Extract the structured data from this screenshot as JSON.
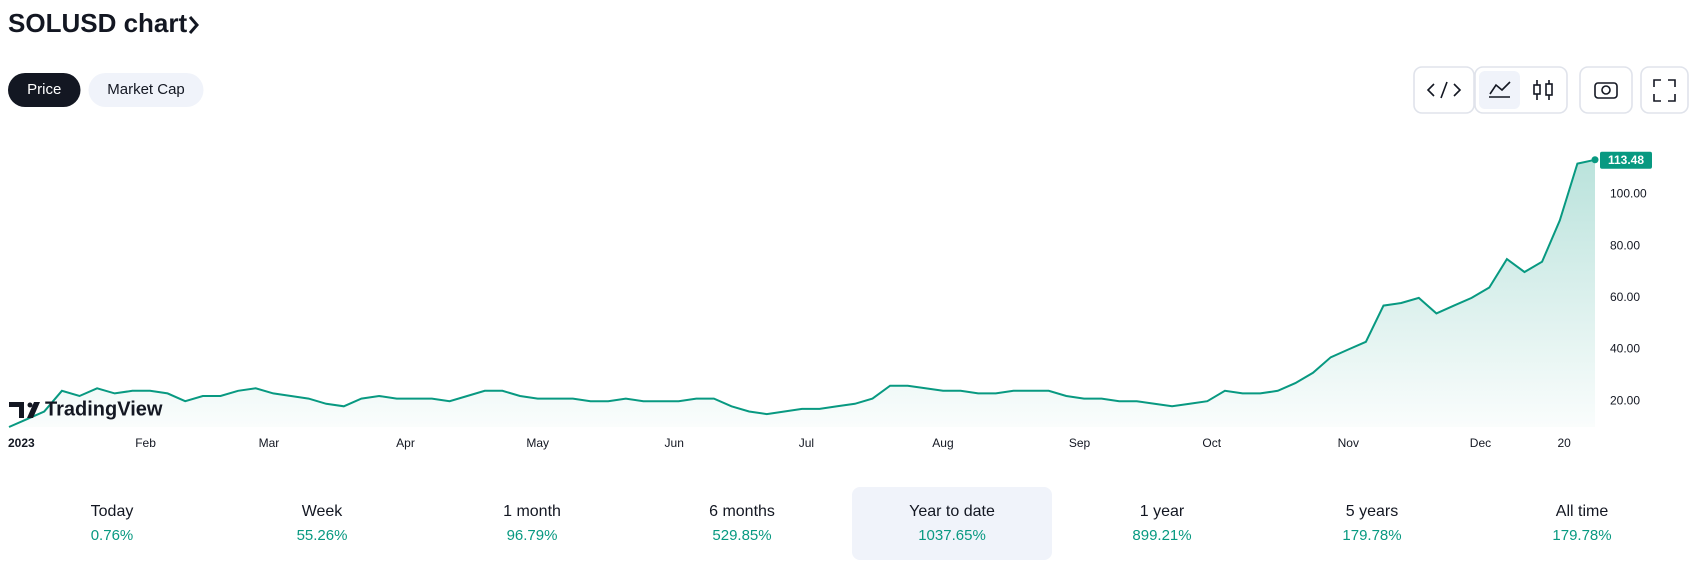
{
  "header": {
    "title": "SOLUSD chart"
  },
  "tabs": {
    "items": [
      "Price",
      "Market Cap"
    ],
    "selected": 0
  },
  "chart_data": {
    "type": "line",
    "color": "#089981",
    "watermark": "TradingView",
    "x": [
      0,
      4,
      8,
      12,
      16,
      20,
      24,
      28,
      32,
      36,
      40,
      44,
      48,
      52,
      56,
      60,
      64,
      68,
      72,
      76,
      80,
      84,
      88,
      92,
      96,
      100,
      104,
      108,
      112,
      116,
      120,
      124,
      128,
      132,
      136,
      140,
      144,
      148,
      152,
      156,
      160,
      164,
      168,
      172,
      176,
      180,
      184,
      188,
      192,
      196,
      200,
      204,
      208,
      212,
      216,
      220,
      224,
      228,
      232,
      236,
      240,
      244,
      248,
      252,
      256,
      260,
      264,
      268,
      272,
      276,
      280,
      284,
      288,
      292,
      296,
      300,
      304,
      308,
      312,
      316,
      320,
      324,
      328,
      332,
      336,
      340,
      344,
      348,
      352,
      356,
      360
    ],
    "values": [
      10,
      13,
      16,
      24,
      22,
      25,
      23,
      24,
      24,
      23,
      20,
      22,
      22,
      24,
      25,
      23,
      22,
      21,
      19,
      18,
      21,
      22,
      21,
      21,
      21,
      20,
      22,
      24,
      24,
      22,
      21,
      21,
      21,
      20,
      20,
      21,
      20,
      20,
      20,
      21,
      21,
      18,
      16,
      15,
      16,
      17,
      17,
      18,
      19,
      21,
      26,
      26,
      25,
      24,
      24,
      23,
      23,
      24,
      24,
      24,
      22,
      21,
      21,
      20,
      20,
      19,
      18,
      19,
      20,
      24,
      23,
      23,
      24,
      27,
      31,
      37,
      40,
      43,
      57,
      58,
      60,
      54,
      57,
      60,
      64,
      75,
      70,
      74,
      90,
      112,
      113.48
    ],
    "xlim": [
      0,
      360
    ],
    "xticks": [
      {
        "value": 0,
        "label": "2023"
      },
      {
        "value": 31,
        "label": "Feb"
      },
      {
        "value": 59,
        "label": "Mar"
      },
      {
        "value": 90,
        "label": "Apr"
      },
      {
        "value": 120,
        "label": "May"
      },
      {
        "value": 151,
        "label": "Jun"
      },
      {
        "value": 181,
        "label": "Jul"
      },
      {
        "value": 212,
        "label": "Aug"
      },
      {
        "value": 243,
        "label": "Sep"
      },
      {
        "value": 273,
        "label": "Oct"
      },
      {
        "value": 304,
        "label": "Nov"
      },
      {
        "value": 334,
        "label": "Dec"
      },
      {
        "value": 353,
        "label": "20"
      }
    ],
    "ylim": [
      10,
      125
    ],
    "yticks": [
      {
        "value": 20,
        "label": "20.00"
      },
      {
        "value": 40,
        "label": "40.00"
      },
      {
        "value": 60,
        "label": "60.00"
      },
      {
        "value": 80,
        "label": "80.00"
      },
      {
        "value": 100,
        "label": "100.00"
      }
    ],
    "grid": false
  },
  "stats": {
    "selected": 4,
    "items": [
      {
        "label": "Today",
        "value": "0.76%"
      },
      {
        "label": "Week",
        "value": "55.26%"
      },
      {
        "label": "1 month",
        "value": "96.79%"
      },
      {
        "label": "6 months",
        "value": "529.85%"
      },
      {
        "label": "Year to date",
        "value": "1037.65%"
      },
      {
        "label": "1 year",
        "value": "899.21%"
      },
      {
        "label": "5 years",
        "value": "179.78%"
      },
      {
        "label": "All time",
        "value": "179.78%"
      }
    ]
  }
}
